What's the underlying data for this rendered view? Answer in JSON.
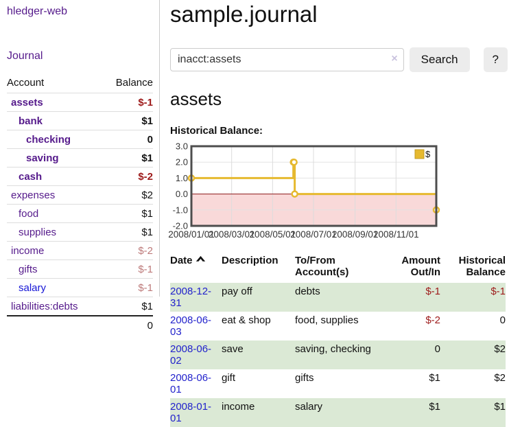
{
  "app": {
    "title": "hledger-web"
  },
  "sidebar": {
    "journal_link": "Journal",
    "table": {
      "account_header": "Account",
      "balance_header": "Balance",
      "rows": [
        {
          "account": "assets",
          "balance": "$-1",
          "row_class": "d1 cur",
          "bal_class": "neg",
          "link_class": ""
        },
        {
          "account": "bank",
          "balance": "$1",
          "row_class": "d2 cur",
          "bal_class": "",
          "link_class": ""
        },
        {
          "account": "checking",
          "balance": "0",
          "row_class": "d3 cur",
          "bal_class": "",
          "link_class": ""
        },
        {
          "account": "saving",
          "balance": "$1",
          "row_class": "d3 cur",
          "bal_class": "",
          "link_class": ""
        },
        {
          "account": "cash",
          "balance": "$-2",
          "row_class": "d2 cur",
          "bal_class": "neg",
          "link_class": ""
        },
        {
          "account": "expenses",
          "balance": "$2",
          "row_class": "d1",
          "bal_class": "",
          "link_class": ""
        },
        {
          "account": "food",
          "balance": "$1",
          "row_class": "d2",
          "bal_class": "",
          "link_class": ""
        },
        {
          "account": "supplies",
          "balance": "$1",
          "row_class": "d2",
          "bal_class": "",
          "link_class": ""
        },
        {
          "account": "income",
          "balance": "$-2",
          "row_class": "d1",
          "bal_class": "negsoft",
          "link_class": ""
        },
        {
          "account": "gifts",
          "balance": "$-1",
          "row_class": "d2",
          "bal_class": "negsoft",
          "link_class": ""
        },
        {
          "account": "salary",
          "balance": "$-1",
          "row_class": "d2",
          "bal_class": "negsoft",
          "link_class": "unvisited"
        },
        {
          "account": "liabilities:debts",
          "balance": "$1",
          "row_class": "d1",
          "bal_class": "",
          "link_class": ""
        }
      ],
      "total": "0"
    }
  },
  "main": {
    "title": "sample.journal",
    "search": {
      "value": "inacct:assets",
      "clear_icon": "×",
      "button_label": "Search",
      "help_label": "?"
    },
    "account_heading": "assets",
    "chart_heading": "Historical Balance:"
  },
  "chart_data": {
    "type": "line",
    "title": "Historical Balance",
    "x_range": [
      "2008-01-01",
      "2008-12-31"
    ],
    "ylim": [
      -2,
      3
    ],
    "y_ticks": [
      "3.0",
      "2.0",
      "1.0",
      "0.0",
      "-1.0",
      "-2.0"
    ],
    "x_ticks": [
      {
        "label": "2008/01/01",
        "date": "2008-01-01"
      },
      {
        "label": "2008/03/01",
        "date": "2008-03-01"
      },
      {
        "label": "2008/05/01",
        "date": "2008-05-01"
      },
      {
        "label": "2008/07/01",
        "date": "2008-07-01"
      },
      {
        "label": "2008/09/01",
        "date": "2008-09-01"
      },
      {
        "label": "2008/11/01",
        "date": "2008-11-01"
      }
    ],
    "series": [
      {
        "name": "$",
        "color": "#e6b92f",
        "step": true,
        "points": [
          {
            "date": "2008-01-01",
            "value": 1
          },
          {
            "date": "2008-06-01",
            "value": 2
          },
          {
            "date": "2008-06-02",
            "value": 2
          },
          {
            "date": "2008-06-03",
            "value": 0
          },
          {
            "date": "2008-12-31",
            "value": -1
          }
        ]
      }
    ],
    "legend": {
      "label": "$",
      "position": "top-right"
    },
    "grid": true,
    "negative_region_color": "#f9d9d9",
    "zero_line_color": "#8c1717"
  },
  "transactions": {
    "headers": {
      "date": "Date",
      "description": "Description",
      "accounts": [
        "To/From",
        "Account(s)"
      ],
      "amount": [
        "Amount",
        "Out/In"
      ],
      "balance": [
        "Historical",
        "Balance"
      ]
    },
    "rows": [
      {
        "date": "2008-12-31",
        "description": "pay off",
        "accounts": "debts",
        "amount": "$-1",
        "amount_class": "neg",
        "balance": "$-1",
        "balance_class": "neg"
      },
      {
        "date": "2008-06-03",
        "description": "eat & shop",
        "accounts": "food, supplies",
        "amount": "$-2",
        "amount_class": "neg",
        "balance": "0",
        "balance_class": ""
      },
      {
        "date": "2008-06-02",
        "description": "save",
        "accounts": "saving, checking",
        "amount": "0",
        "amount_class": "",
        "balance": "$2",
        "balance_class": ""
      },
      {
        "date": "2008-06-01",
        "description": "gift",
        "accounts": "gifts",
        "amount": "$1",
        "amount_class": "",
        "balance": "$2",
        "balance_class": ""
      },
      {
        "date": "2008-01-01",
        "description": "income",
        "accounts": "salary",
        "amount": "$1",
        "amount_class": "",
        "balance": "$1",
        "balance_class": ""
      }
    ]
  }
}
